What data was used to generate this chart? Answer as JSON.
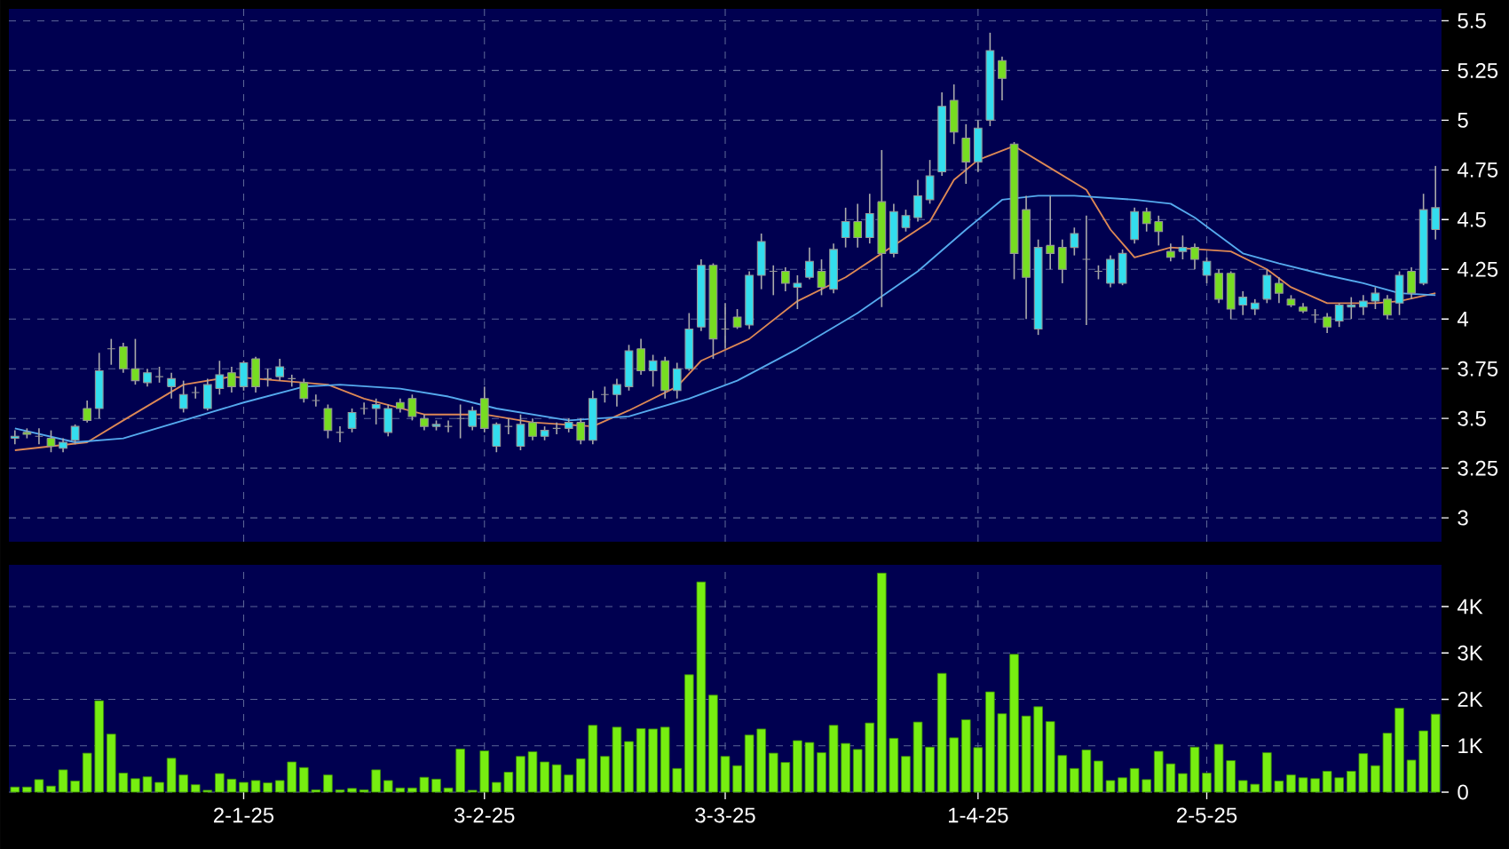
{
  "chart_data": [
    {
      "type": "candlestick",
      "categories": [
        null,
        null,
        null,
        null,
        null,
        null,
        null,
        null,
        null,
        null,
        null,
        null,
        null,
        null,
        null,
        null,
        null,
        null,
        null,
        null,
        null,
        null,
        null,
        null,
        null,
        null,
        null,
        null,
        null,
        null,
        null,
        null,
        null,
        null,
        null,
        null,
        null,
        null,
        null,
        null,
        null,
        null,
        null,
        null,
        null,
        null,
        null,
        null,
        null,
        null,
        null,
        null,
        null,
        null,
        null,
        null,
        null,
        null,
        null,
        null,
        null,
        null,
        null,
        null,
        null,
        null,
        null,
        null,
        null,
        null,
        null,
        null,
        null,
        null,
        null,
        null,
        null,
        null,
        null,
        null,
        null,
        null,
        null,
        null,
        null,
        null,
        null,
        null,
        null,
        null,
        null,
        null,
        null,
        null,
        null,
        null,
        null,
        null,
        null,
        null,
        null,
        null,
        null,
        null,
        null,
        null,
        null,
        null,
        null,
        null,
        null,
        null,
        null,
        null,
        null,
        null,
        null,
        null,
        null
      ],
      "ohlc": [
        [
          3.4,
          3.44,
          3.37,
          3.41
        ],
        [
          3.43,
          3.45,
          3.4,
          3.42
        ],
        [
          3.41,
          3.45,
          3.37,
          3.41
        ],
        [
          3.4,
          3.44,
          3.33,
          3.36
        ],
        [
          3.35,
          3.4,
          3.33,
          3.38
        ],
        [
          3.39,
          3.47,
          3.37,
          3.46
        ],
        [
          3.55,
          3.59,
          3.48,
          3.49
        ],
        [
          3.55,
          3.83,
          3.5,
          3.74
        ],
        [
          3.85,
          3.9,
          3.77,
          3.85
        ],
        [
          3.86,
          3.88,
          3.73,
          3.75
        ],
        [
          3.75,
          3.9,
          3.67,
          3.69
        ],
        [
          3.68,
          3.75,
          3.66,
          3.73
        ],
        [
          3.71,
          3.76,
          3.68,
          3.71
        ],
        [
          3.66,
          3.73,
          3.6,
          3.7
        ],
        [
          3.55,
          3.69,
          3.53,
          3.62
        ],
        [
          3.63,
          3.66,
          3.6,
          3.63
        ],
        [
          3.55,
          3.7,
          3.54,
          3.67
        ],
        [
          3.65,
          3.79,
          3.62,
          3.72
        ],
        [
          3.73,
          3.76,
          3.63,
          3.66
        ],
        [
          3.66,
          3.79,
          3.64,
          3.78
        ],
        [
          3.8,
          3.81,
          3.63,
          3.66
        ],
        [
          3.7,
          3.75,
          3.66,
          3.7
        ],
        [
          3.71,
          3.8,
          3.69,
          3.76
        ],
        [
          3.7,
          3.72,
          3.66,
          3.7
        ],
        [
          3.68,
          3.7,
          3.58,
          3.6
        ],
        [
          3.59,
          3.62,
          3.56,
          3.59
        ],
        [
          3.55,
          3.57,
          3.4,
          3.44
        ],
        [
          3.43,
          3.46,
          3.38,
          3.43
        ],
        [
          3.45,
          3.55,
          3.43,
          3.53
        ],
        [
          3.55,
          3.58,
          3.52,
          3.55
        ],
        [
          3.55,
          3.6,
          3.47,
          3.57
        ],
        [
          3.43,
          3.57,
          3.41,
          3.55
        ],
        [
          3.58,
          3.6,
          3.53,
          3.55
        ],
        [
          3.6,
          3.62,
          3.49,
          3.51
        ],
        [
          3.5,
          3.52,
          3.44,
          3.46
        ],
        [
          3.46,
          3.49,
          3.44,
          3.47
        ],
        [
          3.46,
          3.49,
          3.43,
          3.46
        ],
        [
          3.5,
          3.57,
          3.4,
          3.5
        ],
        [
          3.46,
          3.56,
          3.44,
          3.54
        ],
        [
          3.6,
          3.66,
          3.43,
          3.45
        ],
        [
          3.36,
          3.48,
          3.33,
          3.47
        ],
        [
          3.46,
          3.5,
          3.42,
          3.46
        ],
        [
          3.36,
          3.52,
          3.34,
          3.47
        ],
        [
          3.48,
          3.5,
          3.39,
          3.41
        ],
        [
          3.41,
          3.46,
          3.39,
          3.44
        ],
        [
          3.45,
          3.48,
          3.42,
          3.45
        ],
        [
          3.45,
          3.5,
          3.43,
          3.48
        ],
        [
          3.48,
          3.5,
          3.37,
          3.39
        ],
        [
          3.39,
          3.64,
          3.37,
          3.6
        ],
        [
          3.62,
          3.66,
          3.58,
          3.62
        ],
        [
          3.62,
          3.7,
          3.56,
          3.67
        ],
        [
          3.66,
          3.87,
          3.64,
          3.84
        ],
        [
          3.85,
          3.9,
          3.72,
          3.74
        ],
        [
          3.74,
          3.82,
          3.66,
          3.79
        ],
        [
          3.79,
          3.81,
          3.6,
          3.64
        ],
        [
          3.64,
          3.78,
          3.6,
          3.75
        ],
        [
          3.75,
          4.03,
          3.74,
          3.95
        ],
        [
          3.96,
          4.3,
          3.94,
          4.27
        ],
        [
          4.27,
          4.28,
          3.8,
          3.9
        ],
        [
          3.95,
          4.08,
          3.85,
          3.95
        ],
        [
          4.01,
          4.05,
          3.95,
          3.96
        ],
        [
          3.97,
          4.24,
          3.95,
          4.22
        ],
        [
          4.22,
          4.43,
          4.15,
          4.39
        ],
        [
          4.24,
          4.27,
          4.12,
          4.24
        ],
        [
          4.24,
          4.26,
          4.14,
          4.18
        ],
        [
          4.16,
          4.22,
          4.05,
          4.18
        ],
        [
          4.21,
          4.36,
          4.2,
          4.29
        ],
        [
          4.24,
          4.3,
          4.12,
          4.16
        ],
        [
          4.15,
          4.38,
          4.13,
          4.35
        ],
        [
          4.41,
          4.56,
          4.36,
          4.49
        ],
        [
          4.49,
          4.58,
          4.36,
          4.41
        ],
        [
          4.41,
          4.63,
          4.38,
          4.53
        ],
        [
          4.59,
          4.85,
          4.06,
          4.33
        ],
        [
          4.33,
          4.58,
          4.31,
          4.54
        ],
        [
          4.46,
          4.55,
          4.44,
          4.52
        ],
        [
          4.51,
          4.7,
          4.49,
          4.62
        ],
        [
          4.6,
          4.8,
          4.58,
          4.72
        ],
        [
          4.74,
          5.14,
          4.72,
          5.07
        ],
        [
          5.1,
          5.18,
          4.88,
          4.94
        ],
        [
          4.91,
          4.98,
          4.68,
          4.79
        ],
        [
          4.79,
          5.0,
          4.74,
          4.96
        ],
        [
          5.0,
          5.44,
          4.97,
          5.35
        ],
        [
          5.3,
          5.32,
          5.1,
          5.21
        ],
        [
          4.88,
          4.89,
          4.2,
          4.33
        ],
        [
          4.55,
          4.62,
          4.0,
          4.21
        ],
        [
          3.95,
          4.4,
          3.92,
          4.36
        ],
        [
          4.37,
          4.62,
          4.25,
          4.33
        ],
        [
          4.36,
          4.4,
          4.18,
          4.25
        ],
        [
          4.36,
          4.46,
          4.32,
          4.43
        ],
        [
          4.3,
          4.52,
          3.97,
          4.3
        ],
        [
          4.24,
          4.27,
          4.2,
          4.24
        ],
        [
          4.18,
          4.32,
          4.16,
          4.3
        ],
        [
          4.18,
          4.35,
          4.17,
          4.33
        ],
        [
          4.4,
          4.56,
          4.38,
          4.54
        ],
        [
          4.54,
          4.56,
          4.44,
          4.48
        ],
        [
          4.49,
          4.52,
          4.37,
          4.44
        ],
        [
          4.34,
          4.38,
          4.29,
          4.31
        ],
        [
          4.34,
          4.42,
          4.3,
          4.36
        ],
        [
          4.36,
          4.38,
          4.25,
          4.3
        ],
        [
          4.22,
          4.31,
          4.18,
          4.29
        ],
        [
          4.23,
          4.25,
          4.08,
          4.1
        ],
        [
          4.23,
          4.24,
          4.0,
          4.05
        ],
        [
          4.07,
          4.14,
          4.02,
          4.11
        ],
        [
          4.05,
          4.1,
          4.02,
          4.08
        ],
        [
          4.1,
          4.25,
          4.08,
          4.22
        ],
        [
          4.18,
          4.21,
          4.08,
          4.13
        ],
        [
          4.1,
          4.12,
          4.06,
          4.07
        ],
        [
          4.06,
          4.08,
          4.03,
          4.04
        ],
        [
          4.02,
          4.05,
          3.98,
          4.02
        ],
        [
          4.01,
          4.03,
          3.93,
          3.96
        ],
        [
          3.99,
          4.08,
          3.96,
          4.07
        ],
        [
          4.06,
          4.11,
          4.0,
          4.07
        ],
        [
          4.06,
          4.12,
          4.02,
          4.09
        ],
        [
          4.09,
          4.16,
          4.05,
          4.13
        ],
        [
          4.1,
          4.12,
          4.0,
          4.02
        ],
        [
          4.08,
          4.24,
          4.02,
          4.22
        ],
        [
          4.24,
          4.26,
          4.1,
          4.13
        ],
        [
          4.18,
          4.63,
          4.17,
          4.55
        ],
        [
          4.45,
          4.77,
          4.4,
          4.56
        ]
      ],
      "colors": [
        "#33ddee",
        "#77dd22",
        "#999999",
        "#77dd22",
        "#33ddee",
        "#33ddee",
        "#77dd22",
        "#33ddee",
        "#999999",
        "#77dd22",
        "#77dd22",
        "#33ddee",
        "#999999",
        "#33ddee",
        "#33ddee",
        "#999999",
        "#33ddee",
        "#33ddee",
        "#77dd22",
        "#33ddee",
        "#77dd22",
        "#999999",
        "#33ddee",
        "#999999",
        "#77dd22",
        "#999999",
        "#77dd22",
        "#999999",
        "#33ddee",
        "#999999",
        "#33ddee",
        "#33ddee",
        "#77dd22",
        "#77dd22",
        "#77dd22",
        "#33ddee",
        "#999999",
        "#999999",
        "#33ddee",
        "#77dd22",
        "#33ddee",
        "#999999",
        "#33ddee",
        "#77dd22",
        "#33ddee",
        "#999999",
        "#33ddee",
        "#77dd22",
        "#33ddee",
        "#999999",
        "#33ddee",
        "#33ddee",
        "#77dd22",
        "#33ddee",
        "#77dd22",
        "#33ddee",
        "#33ddee",
        "#33ddee",
        "#77dd22",
        "#999999",
        "#77dd22",
        "#33ddee",
        "#33ddee",
        "#999999",
        "#77dd22",
        "#33ddee",
        "#33ddee",
        "#77dd22",
        "#33ddee",
        "#33ddee",
        "#77dd22",
        "#33ddee",
        "#77dd22",
        "#33ddee",
        "#33ddee",
        "#33ddee",
        "#33ddee",
        "#33ddee",
        "#77dd22",
        "#77dd22",
        "#33ddee",
        "#33ddee",
        "#77dd22",
        "#77dd22",
        "#77dd22",
        "#33ddee",
        "#77dd22",
        "#77dd22",
        "#33ddee",
        "#999999",
        "#999999",
        "#33ddee",
        "#33ddee",
        "#33ddee",
        "#77dd22",
        "#77dd22",
        "#77dd22",
        "#33ddee",
        "#77dd22",
        "#33ddee",
        "#77dd22",
        "#77dd22",
        "#33ddee",
        "#33ddee",
        "#33ddee",
        "#77dd22",
        "#77dd22",
        "#77dd22",
        "#999999",
        "#77dd22",
        "#33ddee",
        "#33ddee",
        "#33ddee",
        "#33ddee",
        "#77dd22",
        "#33ddee",
        "#77dd22",
        "#33ddee",
        "#33ddee"
      ],
      "series": [
        {
          "type": "line",
          "color": "#dd8855",
          "values": [
            3.34,
            null,
            null,
            null,
            null,
            null,
            3.38,
            null,
            null,
            3.49,
            null,
            null,
            null,
            null,
            3.67,
            null,
            null,
            null,
            3.71,
            null,
            null,
            null,
            3.69,
            null,
            null,
            null,
            3.67,
            null,
            null,
            3.6,
            null,
            null,
            null,
            null,
            3.52,
            null,
            null,
            null,
            null,
            3.52,
            null,
            null,
            null,
            3.48,
            null,
            null,
            null,
            null,
            3.46,
            null,
            null,
            3.54,
            null,
            null,
            null,
            3.66,
            null,
            3.79,
            null,
            null,
            null,
            3.9,
            null,
            null,
            null,
            4.09,
            null,
            null,
            null,
            4.21,
            null,
            null,
            4.33,
            null,
            null,
            null,
            4.49,
            null,
            4.7,
            null,
            4.8,
            null,
            null,
            4.87,
            null,
            null,
            4.76,
            null,
            null,
            4.65,
            null,
            4.45,
            null,
            4.31,
            null,
            null,
            4.36,
            null,
            null,
            null,
            null,
            4.34,
            null,
            null,
            4.25,
            null,
            4.16,
            null,
            null,
            4.08,
            null,
            null,
            null,
            4.08,
            null,
            4.09,
            null,
            null,
            4.13
          ]
        },
        {
          "type": "line",
          "color": "#55aaee",
          "values": [
            3.45,
            null,
            null,
            null,
            null,
            3.38,
            null,
            null,
            null,
            3.4,
            null,
            null,
            null,
            null,
            3.49,
            null,
            null,
            null,
            null,
            3.58,
            null,
            null,
            null,
            null,
            3.66,
            null,
            null,
            3.67,
            null,
            null,
            null,
            null,
            3.65,
            null,
            null,
            null,
            3.61,
            null,
            null,
            null,
            3.55,
            null,
            null,
            null,
            null,
            null,
            3.49,
            null,
            null,
            null,
            null,
            3.51,
            null,
            null,
            null,
            null,
            3.6,
            null,
            null,
            null,
            3.69,
            null,
            null,
            null,
            null,
            3.85,
            null,
            null,
            null,
            null,
            4.03,
            null,
            null,
            null,
            null,
            4.24,
            null,
            null,
            null,
            4.45,
            null,
            null,
            4.6,
            null,
            null,
            4.62,
            null,
            null,
            4.62,
            null,
            null,
            null,
            null,
            4.6,
            null,
            null,
            4.58,
            null,
            4.51,
            null,
            null,
            null,
            4.33,
            null,
            null,
            4.28,
            null,
            null,
            null,
            4.22,
            null,
            null,
            4.18,
            null,
            null,
            4.13,
            null,
            null,
            4.12
          ]
        }
      ],
      "ylim": [
        2.88,
        5.56
      ],
      "yticks": [
        3,
        3.25,
        3.5,
        3.75,
        4,
        4.25,
        4.5,
        4.75,
        5,
        5.25,
        5.5
      ],
      "grid": true,
      "tick_labels": "y"
    },
    {
      "type": "bar",
      "categories": [
        null,
        null,
        null,
        null,
        null,
        null,
        null,
        null,
        null,
        null,
        null,
        null,
        null,
        null,
        null,
        null,
        null,
        null,
        null,
        "2-1-25",
        null,
        null,
        null,
        null,
        null,
        null,
        null,
        null,
        null,
        null,
        null,
        null,
        null,
        null,
        null,
        null,
        null,
        null,
        null,
        "3-2-25",
        null,
        null,
        null,
        null,
        null,
        null,
        null,
        null,
        null,
        null,
        null,
        null,
        null,
        null,
        null,
        null,
        null,
        null,
        null,
        "3-3-25",
        null,
        null,
        null,
        null,
        null,
        null,
        null,
        null,
        null,
        null,
        null,
        null,
        null,
        null,
        null,
        null,
        null,
        null,
        null,
        null,
        "1-4-25",
        null,
        null,
        null,
        null,
        null,
        null,
        null,
        null,
        null,
        null,
        null,
        null,
        null,
        null,
        null,
        null,
        null,
        null,
        "2-5-25",
        null,
        null,
        null,
        null,
        null,
        null,
        null,
        null,
        null,
        null,
        null,
        null,
        null,
        null,
        null,
        null,
        null,
        null,
        null
      ],
      "values": [
        110,
        110,
        270,
        130,
        480,
        240,
        840,
        1970,
        1250,
        410,
        290,
        330,
        210,
        730,
        370,
        160,
        40,
        400,
        280,
        210,
        250,
        200,
        250,
        650,
        530,
        50,
        370,
        50,
        80,
        50,
        480,
        250,
        90,
        90,
        320,
        280,
        90,
        930,
        40,
        890,
        210,
        430,
        770,
        870,
        650,
        590,
        370,
        720,
        1440,
        770,
        1400,
        1090,
        1370,
        1360,
        1400,
        510,
        2530,
        4530,
        2090,
        770,
        570,
        1230,
        1360,
        840,
        640,
        1110,
        1070,
        850,
        1440,
        1050,
        920,
        1490,
        4720,
        1160,
        770,
        1510,
        970,
        2560,
        1170,
        1560,
        960,
        2160,
        1690,
        2970,
        1640,
        1840,
        1520,
        790,
        510,
        910,
        670,
        250,
        310,
        510,
        270,
        880,
        610,
        400,
        970,
        410,
        1030,
        680,
        250,
        170,
        850,
        240,
        370,
        310,
        290,
        450,
        310,
        450,
        830,
        570,
        1270,
        1810,
        690,
        1320,
        1680
      ],
      "color": "#77ee11",
      "ylim": [
        0,
        4900
      ],
      "yticks": [
        0,
        {
          "value": 1000,
          "label": "1K"
        },
        {
          "value": 2000,
          "label": "2K"
        },
        {
          "value": 3000,
          "label": "3K"
        },
        {
          "value": 4000,
          "label": "4K"
        }
      ],
      "grid": true
    }
  ]
}
